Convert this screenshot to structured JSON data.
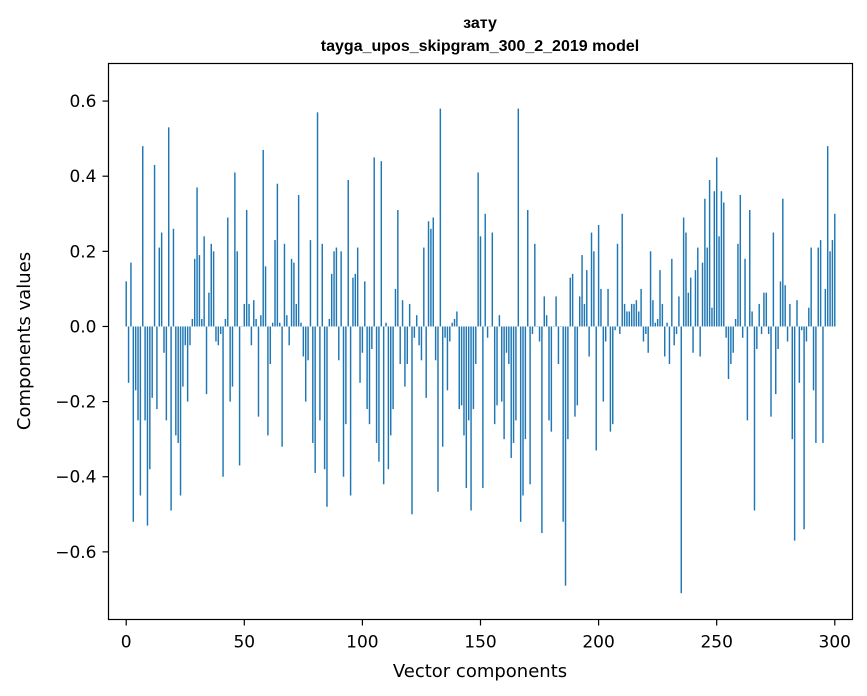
{
  "chart_data": {
    "type": "bar",
    "title": "зату",
    "subtitle": "tayga_upos_skipgram_300_2_2019 model",
    "xlabel": "Vector components",
    "ylabel": "Components values",
    "xlim": [
      -7.5,
      307.5
    ],
    "ylim": [
      -0.78,
      0.7
    ],
    "xticks": [
      0,
      50,
      100,
      150,
      200,
      250,
      300
    ],
    "xtick_labels": [
      "0",
      "50",
      "100",
      "150",
      "200",
      "250",
      "300"
    ],
    "yticks": [
      -0.6,
      -0.4,
      -0.2,
      0.0,
      0.2,
      0.4,
      0.6
    ],
    "ytick_labels": [
      "−0.6",
      "−0.4",
      "−0.2",
      "0.0",
      "0.2",
      "0.4",
      "0.6"
    ],
    "bar_color": "#1f77b4",
    "values": [
      0.12,
      -0.15,
      0.17,
      -0.52,
      -0.17,
      -0.25,
      -0.45,
      0.48,
      -0.25,
      -0.53,
      -0.38,
      -0.19,
      0.43,
      -0.22,
      0.21,
      0.25,
      -0.07,
      -0.25,
      0.53,
      -0.49,
      0.26,
      -0.29,
      -0.31,
      -0.45,
      -0.16,
      -0.05,
      -0.2,
      -0.05,
      0.02,
      0.18,
      0.37,
      0.19,
      0.02,
      0.24,
      -0.18,
      0.09,
      0.22,
      0.2,
      -0.04,
      -0.05,
      -0.02,
      -0.4,
      0.02,
      0.29,
      -0.2,
      -0.16,
      0.41,
      0.2,
      -0.37,
      0.0,
      0.06,
      0.31,
      0.06,
      -0.05,
      0.07,
      0.02,
      -0.24,
      0.03,
      0.47,
      0.16,
      -0.29,
      -0.1,
      0.01,
      0.23,
      0.38,
      0.01,
      -0.32,
      0.22,
      0.03,
      -0.05,
      0.18,
      0.17,
      0.06,
      0.35,
      0.01,
      -0.08,
      -0.2,
      -0.09,
      0.23,
      -0.31,
      -0.39,
      0.57,
      -0.25,
      0.22,
      -0.38,
      -0.48,
      0.02,
      0.14,
      0.2,
      0.21,
      -0.09,
      0.2,
      -0.4,
      -0.26,
      0.39,
      -0.45,
      0.13,
      0.14,
      0.21,
      -0.15,
      -0.07,
      0.12,
      -0.22,
      -0.26,
      -0.06,
      0.45,
      -0.31,
      -0.36,
      0.44,
      -0.42,
      0.01,
      -0.38,
      -0.29,
      -0.22,
      0.1,
      0.31,
      -0.1,
      0.07,
      -0.16,
      -0.1,
      0.06,
      -0.5,
      -0.03,
      0.03,
      -0.05,
      -0.09,
      0.21,
      -0.19,
      0.28,
      0.26,
      0.29,
      -0.09,
      -0.44,
      0.58,
      -0.32,
      -0.03,
      -0.17,
      -0.04,
      0.01,
      0.02,
      0.04,
      -0.22,
      -0.21,
      -0.29,
      -0.43,
      -0.25,
      -0.49,
      -0.22,
      -0.1,
      0.41,
      0.24,
      -0.43,
      0.3,
      -0.03,
      0.0,
      0.25,
      -0.26,
      -0.21,
      0.03,
      -0.2,
      -0.3,
      -0.07,
      -0.1,
      -0.35,
      -0.31,
      -0.25,
      0.58,
      -0.52,
      -0.45,
      -0.3,
      0.31,
      -0.42,
      -0.02,
      0.22,
      0.0,
      -0.04,
      -0.55,
      0.08,
      0.03,
      -0.25,
      -0.28,
      0.0,
      0.08,
      -0.1,
      0.0,
      -0.52,
      -0.69,
      -0.3,
      0.13,
      0.14,
      -0.24,
      -0.21,
      0.08,
      0.19,
      0.06,
      0.15,
      -0.08,
      0.25,
      0.2,
      -0.33,
      0.27,
      0.1,
      -0.2,
      -0.04,
      0.1,
      -0.28,
      -0.26,
      -0.01,
      0.22,
      -0.02,
      0.3,
      0.06,
      0.04,
      0.04,
      0.06,
      0.06,
      0.07,
      0.04,
      0.1,
      -0.04,
      -0.02,
      -0.07,
      0.2,
      0.07,
      0.01,
      0.02,
      0.15,
      0.06,
      -0.08,
      0.01,
      -0.1,
      0.18,
      -0.05,
      -0.02,
      0.08,
      -0.71,
      0.29,
      0.25,
      0.09,
      0.13,
      -0.07,
      0.15,
      0.21,
      -0.08,
      0.17,
      0.34,
      0.21,
      0.39,
      0.05,
      0.36,
      0.45,
      0.24,
      0.36,
      0.33,
      -0.03,
      -0.14,
      -0.1,
      -0.07,
      0.02,
      0.22,
      0.35,
      -0.03,
      0.18,
      -0.25,
      0.31,
      0.04,
      -0.49,
      -0.06,
      0.06,
      -0.02,
      0.09,
      0.09,
      -0.02,
      -0.24,
      0.25,
      -0.18,
      -0.06,
      0.12,
      0.34,
      0.11,
      -0.04,
      0.06,
      -0.3,
      -0.57,
      0.07,
      -0.15,
      -0.01,
      -0.54,
      -0.04,
      0.05,
      0.21,
      -0.17,
      -0.31,
      0.21,
      0.23,
      -0.31,
      0.1,
      0.48,
      0.2,
      0.23,
      0.3
    ]
  }
}
